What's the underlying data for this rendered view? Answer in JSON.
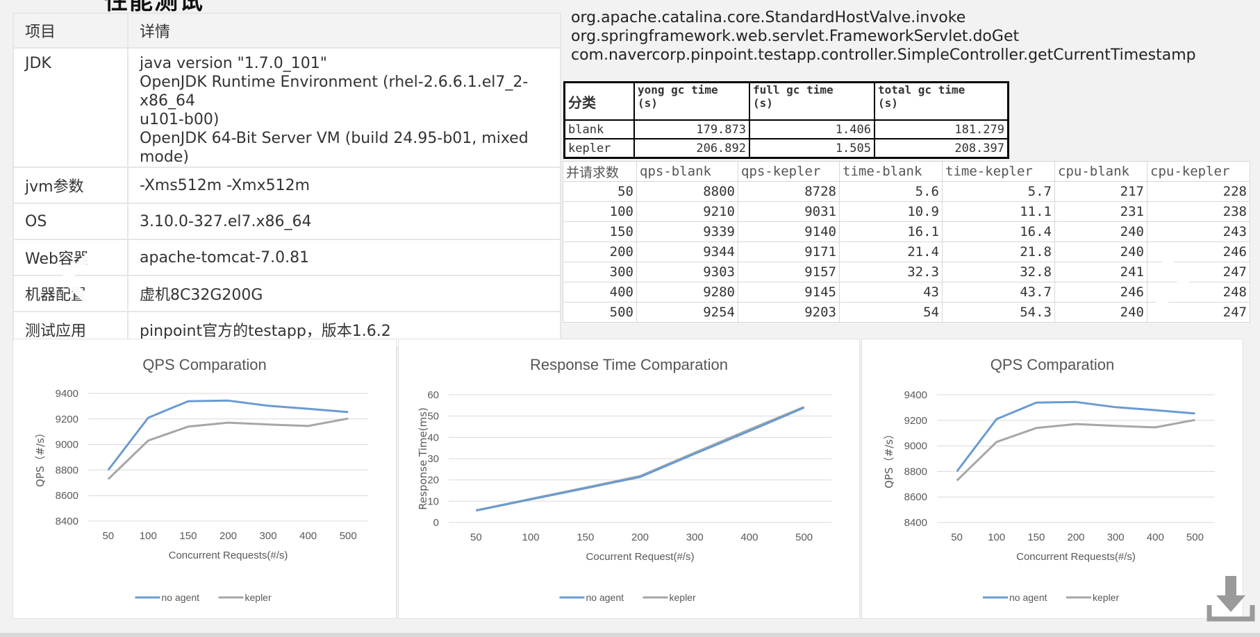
{
  "header_clip": "性能测试",
  "env_table": {
    "headers": [
      "项目",
      "详情"
    ],
    "jdk": {
      "label": "JDK",
      "lines": [
        "java version \"1.7.0_101\"",
        "OpenJDK Runtime Environment (rhel-2.6.6.1.el7_2-x86_64",
        "u101-b00)",
        "OpenJDK 64-Bit Server VM (build 24.95-b01, mixed mode)"
      ]
    },
    "rows": [
      {
        "label": "jvm参数",
        "value": "-Xms512m -Xmx512m"
      },
      {
        "label": "OS",
        "value": "3.10.0-327.el7.x86_64"
      },
      {
        "label": "Web容器",
        "value": "apache-tomcat-7.0.81"
      },
      {
        "label": "机器配置",
        "value": "虚机8C32G200G"
      },
      {
        "label": "测试应用",
        "value": "pinpoint官方的testapp，版本1.6.2"
      }
    ]
  },
  "stack_lines": [
    "org.apache.catalina.core.StandardHostValve.invoke",
    "org.springframework.web.servlet.FrameworkServlet.doGet",
    "com.navercorp.pinpoint.testapp.controller.SimpleController.getCurrentTimestamp"
  ],
  "gc_table": {
    "headers": [
      "分类",
      "yong gc time\n(s)",
      "full gc time\n(s)",
      "total gc time\n(s)"
    ],
    "rows": [
      [
        "blank",
        "179.873",
        "1.406",
        "181.279"
      ],
      [
        "kepler",
        "206.892",
        "1.505",
        "208.397"
      ]
    ]
  },
  "perf_table": {
    "headers": [
      "并请求数",
      "qps-blank",
      "qps-kepler",
      "time-blank",
      "time-kepler",
      "cpu-blank",
      "cpu-kepler"
    ],
    "rows": [
      [
        "50",
        "8800",
        "8728",
        "5.6",
        "5.7",
        "217",
        "228"
      ],
      [
        "100",
        "9210",
        "9031",
        "10.9",
        "11.1",
        "231",
        "238"
      ],
      [
        "150",
        "9339",
        "9140",
        "16.1",
        "16.4",
        "240",
        "243"
      ],
      [
        "200",
        "9344",
        "9171",
        "21.4",
        "21.8",
        "240",
        "246"
      ],
      [
        "300",
        "9303",
        "9157",
        "32.3",
        "32.8",
        "241",
        "247"
      ],
      [
        "400",
        "9280",
        "9145",
        "43",
        "43.7",
        "246",
        "248"
      ],
      [
        "500",
        "9254",
        "9203",
        "54",
        "54.3",
        "240",
        "247"
      ]
    ]
  },
  "chart_data": [
    {
      "type": "line",
      "title": "QPS Comparation",
      "xlabel": "Concurrent Requests(#/s)",
      "ylabel": "QPS（#/s）",
      "categories": [
        "50",
        "100",
        "150",
        "200",
        "300",
        "400",
        "500"
      ],
      "ylim": [
        8400,
        9400
      ],
      "yticks": [
        "9400",
        "9200",
        "9000",
        "8800",
        "8600",
        "8400"
      ],
      "grid": true,
      "legend": "bottom",
      "series": [
        {
          "name": "no agent",
          "color": "#6a9bd1",
          "values": [
            8800,
            9210,
            9339,
            9344,
            9303,
            9280,
            9254
          ]
        },
        {
          "name": "kepler",
          "color": "#a6a6a6",
          "values": [
            8728,
            9031,
            9140,
            9171,
            9157,
            9145,
            9203
          ]
        }
      ]
    },
    {
      "type": "line",
      "title": "Response Time Comparation",
      "xlabel": "Cocurrent Request(#/s)",
      "ylabel": "Response Time(ms)",
      "categories": [
        "50",
        "100",
        "150",
        "200",
        "300",
        "400",
        "500"
      ],
      "ylim": [
        0,
        60
      ],
      "yticks": [
        "60",
        "50",
        "40",
        "30",
        "20",
        "10",
        "0"
      ],
      "grid": true,
      "legend": "bottom",
      "series": [
        {
          "name": "no agent",
          "color": "#6a9bd1",
          "values": [
            5.6,
            10.9,
            16.1,
            21.4,
            32.3,
            43,
            54
          ]
        },
        {
          "name": "kepler",
          "color": "#a6a6a6",
          "values": [
            5.7,
            11.1,
            16.4,
            21.8,
            32.8,
            43.7,
            54.3
          ]
        }
      ]
    },
    {
      "type": "line",
      "title": "QPS Comparation",
      "xlabel": "Concurrent Requests(#/s)",
      "ylabel": "QPS（#/s）",
      "categories": [
        "50",
        "100",
        "150",
        "200",
        "300",
        "400",
        "500"
      ],
      "ylim": [
        8400,
        9400
      ],
      "yticks": [
        "9400",
        "9200",
        "9000",
        "8800",
        "8600",
        "8400"
      ],
      "grid": true,
      "legend": "bottom",
      "series": [
        {
          "name": "no agent",
          "color": "#6a9bd1",
          "values": [
            8800,
            9210,
            9339,
            9344,
            9303,
            9280,
            9254
          ]
        },
        {
          "name": "kepler",
          "color": "#a6a6a6",
          "values": [
            8728,
            9031,
            9140,
            9171,
            9157,
            9145,
            9203
          ]
        }
      ]
    }
  ],
  "icons": {
    "prev": "chevron-left-icon",
    "next": "chevron-right-icon",
    "download": "download-icon"
  }
}
